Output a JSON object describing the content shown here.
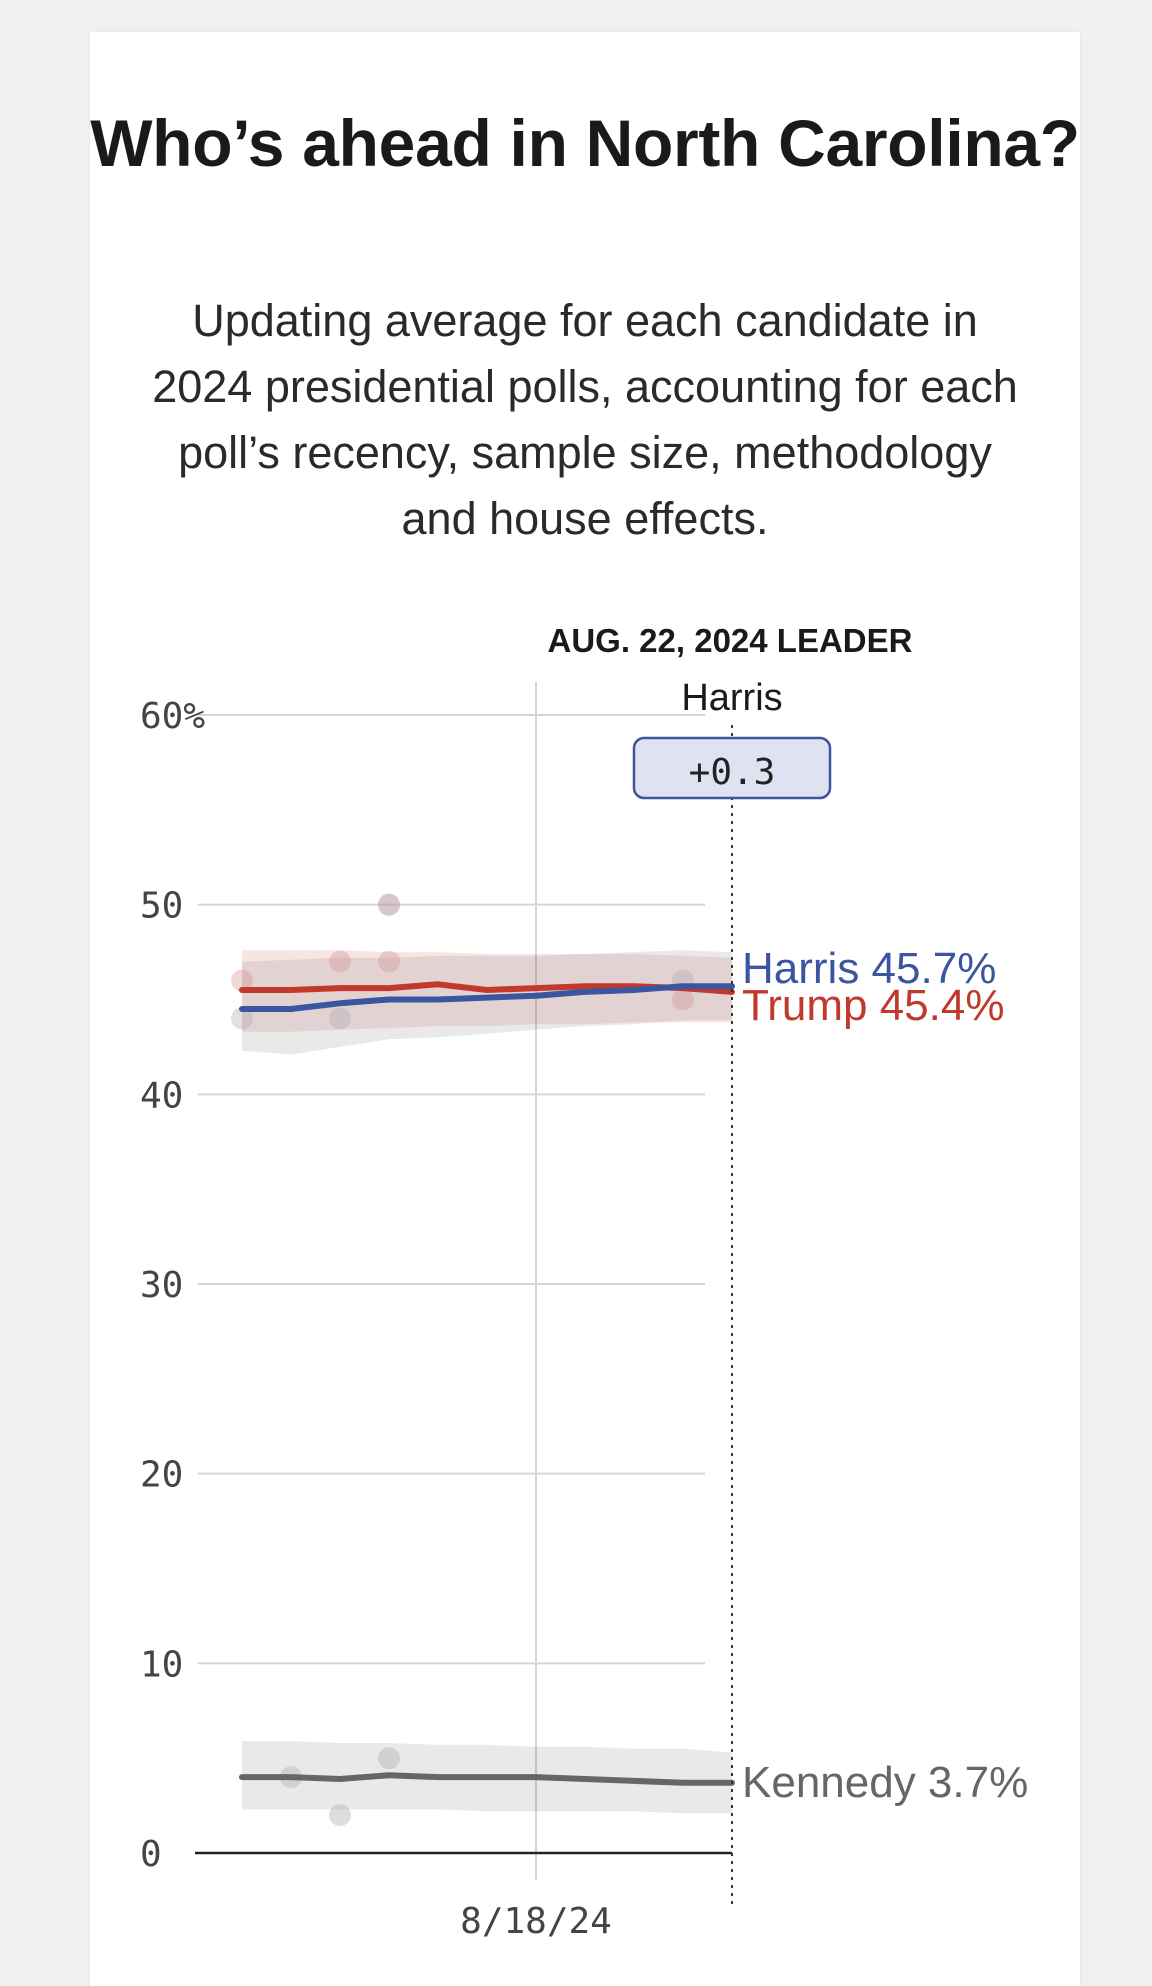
{
  "page": {
    "title": "Who’s ahead in North Carolina?",
    "subtitle": "Updating average for each candidate in 2024 presidential polls, accounting for each poll’s recency, sample size, methodology and house effects."
  },
  "leader": {
    "heading": "AUG. 22, 2024 LEADER",
    "name": "Harris",
    "margin": "+0.3"
  },
  "colors": {
    "harris": "#3b55a0",
    "trump": "#c0392b",
    "kennedy": "#666666",
    "grid": "#d4d4d4",
    "leader_box_fill": "#dfe3f1",
    "leader_box_stroke": "#3b55a0"
  },
  "chart_data": {
    "type": "line",
    "ylim": [
      0,
      60
    ],
    "y_ticks": [
      0,
      10,
      20,
      30,
      40,
      50,
      60
    ],
    "y_tick_labels": [
      "0",
      "10",
      "20",
      "30",
      "40",
      "50",
      "60%"
    ],
    "x_tick_labels": [
      "8/18/24"
    ],
    "x": [
      "8/12/24",
      "8/13/24",
      "8/14/24",
      "8/15/24",
      "8/16/24",
      "8/17/24",
      "8/18/24",
      "8/19/24",
      "8/20/24",
      "8/21/24",
      "8/22/24"
    ],
    "series": [
      {
        "name": "Trump",
        "color": "#c0392b",
        "values": [
          45.5,
          45.5,
          45.6,
          45.6,
          45.8,
          45.5,
          45.6,
          45.7,
          45.7,
          45.6,
          45.4
        ],
        "upper": [
          47.6,
          47.6,
          47.6,
          47.5,
          47.5,
          47.4,
          47.4,
          47.4,
          47.4,
          47.3,
          47.2
        ],
        "lower": [
          43.3,
          43.3,
          43.4,
          43.5,
          43.6,
          43.6,
          43.7,
          43.7,
          43.8,
          43.8,
          43.8
        ],
        "label": "Trump 45.4%",
        "polls": [
          {
            "x": "8/12/24",
            "y": 46
          },
          {
            "x": "8/14/24",
            "y": 47
          },
          {
            "x": "8/15/24",
            "y": 47
          },
          {
            "x": "8/15/24",
            "y": 50
          },
          {
            "x": "8/21/24",
            "y": 45
          }
        ]
      },
      {
        "name": "Harris",
        "color": "#3b55a0",
        "values": [
          44.5,
          44.5,
          44.8,
          45.0,
          45.0,
          45.1,
          45.2,
          45.4,
          45.5,
          45.7,
          45.7
        ],
        "upper": [
          47.0,
          47.1,
          47.2,
          47.2,
          47.3,
          47.3,
          47.3,
          47.4,
          47.5,
          47.6,
          47.5
        ],
        "lower": [
          42.3,
          42.1,
          42.5,
          42.9,
          43.0,
          43.2,
          43.4,
          43.6,
          43.7,
          43.9,
          43.9
        ],
        "label": "Harris 45.7%",
        "polls": [
          {
            "x": "8/12/24",
            "y": 44
          },
          {
            "x": "8/14/24",
            "y": 44
          },
          {
            "x": "8/15/24",
            "y": 50
          },
          {
            "x": "8/21/24",
            "y": 46
          }
        ]
      },
      {
        "name": "Kennedy",
        "color": "#666666",
        "values": [
          4.0,
          4.0,
          3.9,
          4.1,
          4.0,
          4.0,
          4.0,
          3.9,
          3.8,
          3.7,
          3.7
        ],
        "upper": [
          5.9,
          5.9,
          5.8,
          5.8,
          5.7,
          5.7,
          5.6,
          5.6,
          5.5,
          5.5,
          5.3
        ],
        "lower": [
          2.3,
          2.3,
          2.3,
          2.3,
          2.3,
          2.2,
          2.2,
          2.2,
          2.2,
          2.1,
          2.1
        ],
        "label": "Kennedy 3.7%",
        "polls": [
          {
            "x": "8/13/24",
            "y": 4
          },
          {
            "x": "8/14/24",
            "y": 2
          },
          {
            "x": "8/15/24",
            "y": 5
          }
        ]
      }
    ]
  }
}
